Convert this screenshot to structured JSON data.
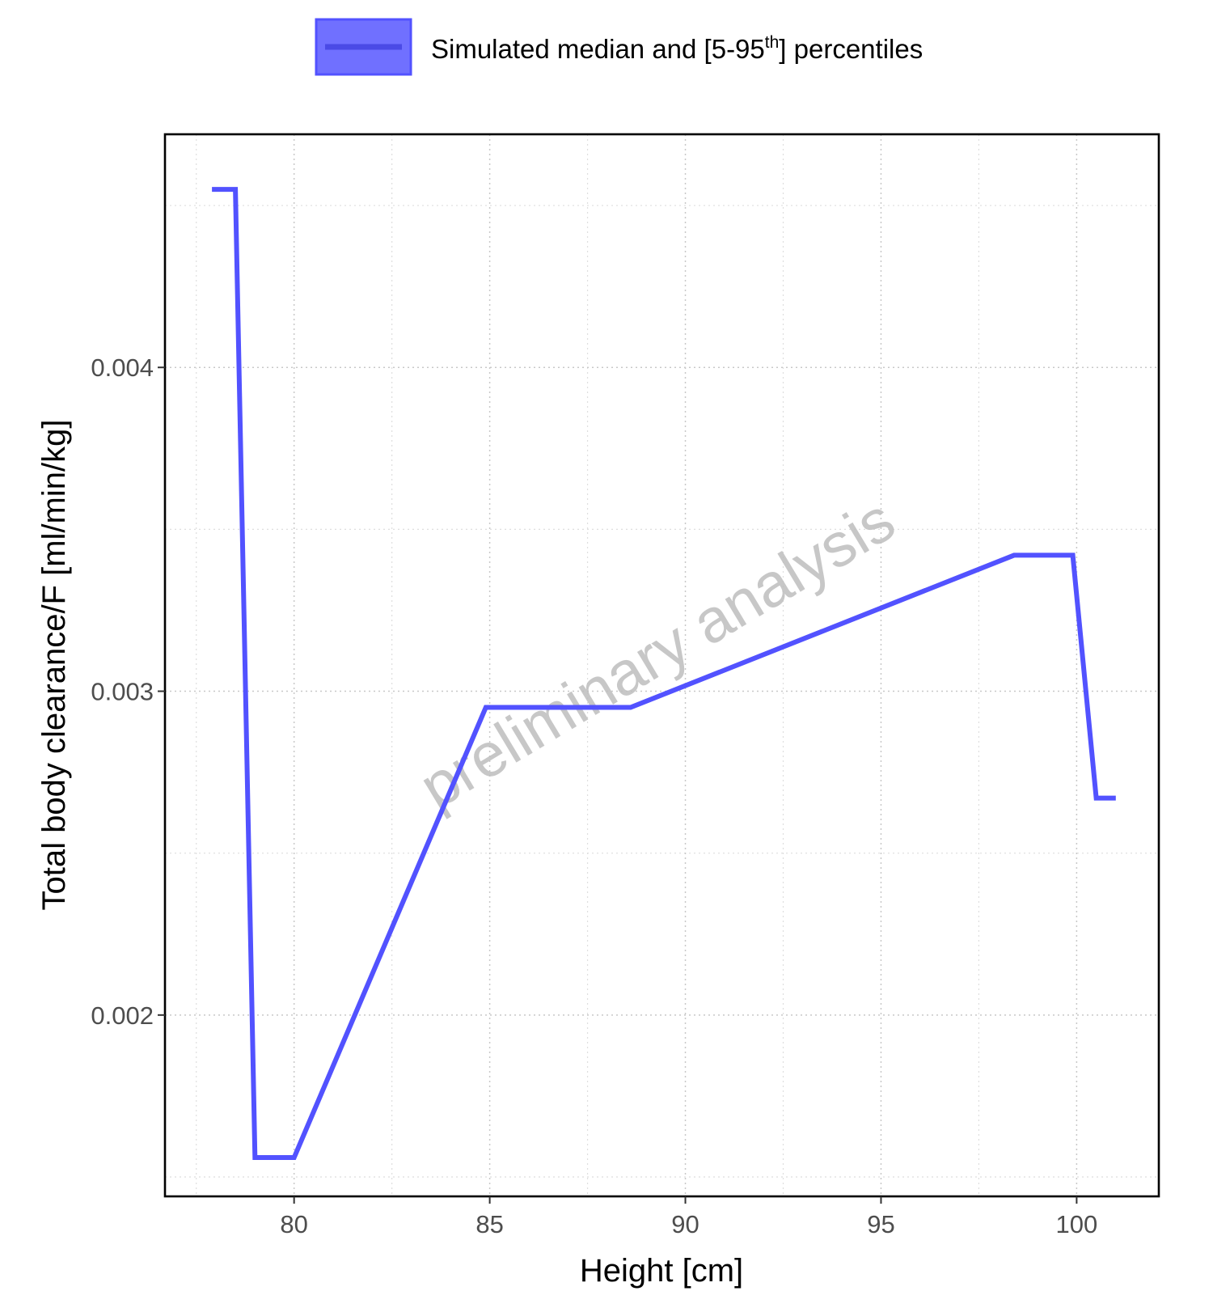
{
  "chart_data": {
    "type": "line",
    "legend": {
      "placement": "top",
      "label_pre": "Simulated median and [5-95",
      "label_sup": "th",
      "label_post": "] percentiles",
      "fill_color": "#7070ff",
      "line_color": "#5252ff"
    },
    "xlabel": "Height [cm]",
    "ylabel": "Total body clearance/F [ml/min/kg]",
    "xlim": [
      76.7,
      102.1
    ],
    "ylim": [
      0.00144,
      0.00472
    ],
    "x_ticks": [
      80,
      85,
      90,
      95,
      100
    ],
    "x_tick_labels": [
      "80",
      "85",
      "90",
      "95",
      "100"
    ],
    "x_minor_ticks": [
      77.5,
      82.5,
      87.5,
      92.5,
      97.5,
      102.5
    ],
    "y_ticks": [
      0.002,
      0.003,
      0.004
    ],
    "y_tick_labels": [
      "0.002",
      "0.003",
      "0.004"
    ],
    "y_minor_ticks": [
      0.0015,
      0.0025,
      0.0035,
      0.0045
    ],
    "grid": true,
    "watermark": "preliminary analysis",
    "series": [
      {
        "name": "Simulated median and [5-95th] percentiles",
        "color": "#5252ff",
        "x": [
          77.9,
          78.5,
          79.0,
          80.0,
          84.9,
          88.6,
          98.4,
          99.9,
          100.5,
          101.0
        ],
        "y": [
          0.00455,
          0.00455,
          0.00156,
          0.00156,
          0.00295,
          0.00295,
          0.00342,
          0.00342,
          0.00267,
          0.00267
        ]
      }
    ]
  }
}
